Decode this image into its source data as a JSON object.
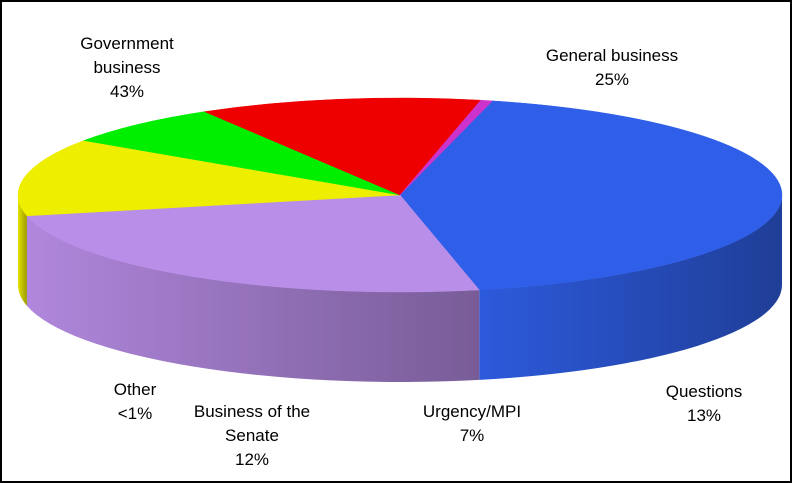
{
  "chart_data": {
    "type": "pie3d",
    "categories": [
      "Government business",
      "General business",
      "Questions",
      "Urgency/MPI",
      "Business of the Senate",
      "Other"
    ],
    "values": [
      43,
      25,
      13,
      7,
      12,
      0.5
    ],
    "value_labels": [
      "43%",
      "25%",
      "13%",
      "7%",
      "12%",
      "<1%"
    ],
    "colors": [
      "#2f5fe8",
      "#b98ee8",
      "#eeee00",
      "#00ee00",
      "#ee0000",
      "#cc33cc"
    ]
  }
}
